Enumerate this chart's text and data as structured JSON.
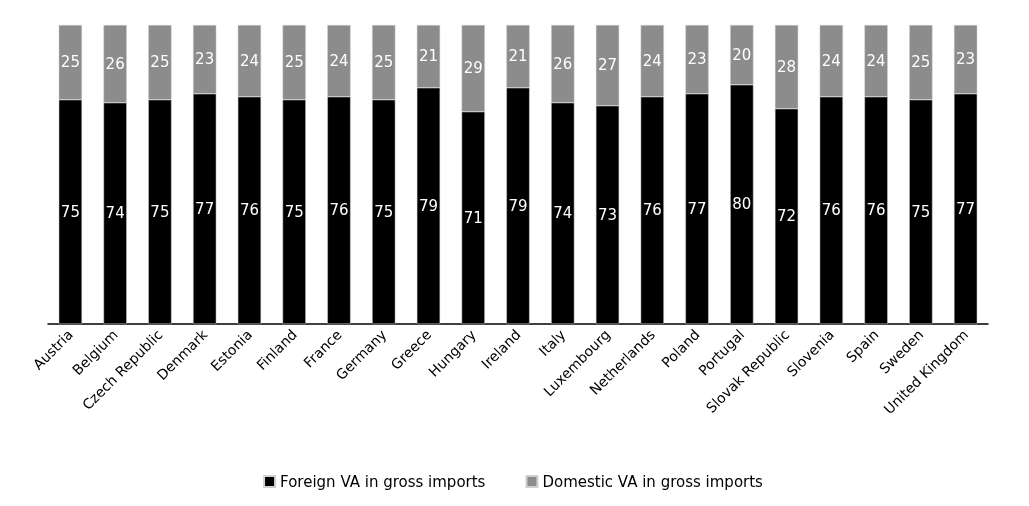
{
  "chart_data": {
    "type": "bar",
    "stacked": true,
    "data_labels": true,
    "legend": "bottom",
    "grid": false,
    "categories": [
      "Austria",
      "Belgium",
      "Czech Republic",
      "Denmark",
      "Estonia",
      "Finland",
      "France",
      "Germany",
      "Greece",
      "Hungary",
      "Ireland",
      "Italy",
      "Luxembourg",
      "Netherlands",
      "Poland",
      "Portugal",
      "Slovak Republic",
      "Slovenia",
      "Spain",
      "Sweden",
      "United Kingdom"
    ],
    "series": [
      {
        "name": "Foreign VA in gross imports",
        "color": "#000000",
        "values": [
          75,
          74,
          75,
          77,
          76,
          75,
          76,
          75,
          79,
          71,
          79,
          74,
          73,
          76,
          77,
          80,
          72,
          76,
          76,
          75,
          77
        ]
      },
      {
        "name": "Domestic VA in gross imports",
        "color": "#8c8c8c",
        "values": [
          25,
          26,
          25,
          23,
          24,
          25,
          24,
          25,
          21,
          29,
          21,
          26,
          27,
          24,
          23,
          20,
          28,
          24,
          24,
          25,
          23
        ]
      }
    ]
  }
}
